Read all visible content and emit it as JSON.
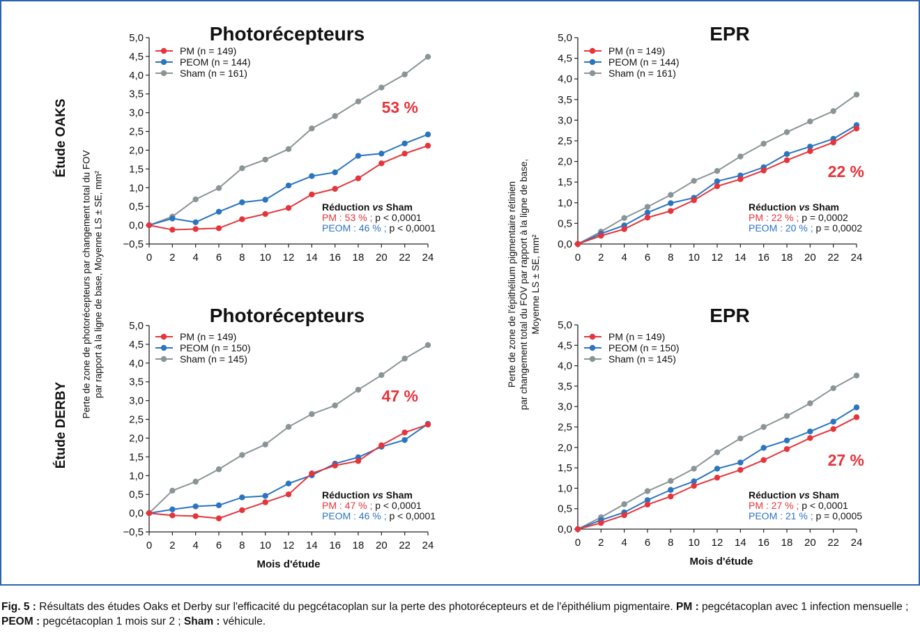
{
  "row_labels": [
    "Étude OAKS",
    "Étude DERBY"
  ],
  "shared_ylabels": {
    "left": [
      "Perte de zone de photorécepteurs par changement total du FOV",
      "par rapport à la ligne de base, Moyenne LS ± SE, mm²"
    ],
    "right": [
      "Perte de zone de l'épithélium pigmentaire rétinien",
      "par changement total du FOV par rapport à la ligne de base,",
      "Moyenne LS ± SE, mm²"
    ]
  },
  "colors": {
    "PM": "#e5343a",
    "PEOM": "#2a74c0",
    "Sham": "#8a9496",
    "frame": "#2a64b0"
  },
  "chart_data": [
    {
      "type": "line",
      "title": "Photorécepteurs",
      "study": "OAKS",
      "xlabel": "",
      "x": [
        0,
        2,
        4,
        6,
        8,
        10,
        12,
        14,
        16,
        18,
        20,
        22,
        24
      ],
      "xticks": [
        "0",
        "2",
        "4",
        "6",
        "8",
        "10",
        "12",
        "14",
        "16",
        "18",
        "20",
        "22",
        "24"
      ],
      "ylim": [
        -0.5,
        5.0
      ],
      "yticks": [
        "−0,5",
        "0,0",
        "0,5",
        "1,0",
        "1,5",
        "2,0",
        "2,5",
        "3,0",
        "3,5",
        "4,0",
        "4,5",
        "5,0"
      ],
      "series": [
        {
          "name": "PM (n = 149)",
          "key": "PM",
          "values": [
            0,
            -0.12,
            -0.1,
            -0.08,
            0.16,
            0.3,
            0.46,
            0.82,
            0.97,
            1.25,
            1.65,
            1.91,
            2.12
          ]
        },
        {
          "name": "PEOM (n = 144)",
          "key": "PEOM",
          "values": [
            0,
            0.18,
            0.08,
            0.36,
            0.61,
            0.68,
            1.06,
            1.31,
            1.41,
            1.85,
            1.91,
            2.18,
            2.42
          ]
        },
        {
          "name": "Sham (n = 161)",
          "key": "Sham",
          "values": [
            0,
            0.23,
            0.69,
            0.99,
            1.52,
            1.75,
            2.03,
            2.58,
            2.91,
            3.3,
            3.67,
            4.02,
            4.49
          ]
        }
      ],
      "highlight": "53 %",
      "stats_title": [
        "Réduction ",
        "vs",
        " Sham"
      ],
      "stats": [
        {
          "key": "PM",
          "label": "PM : 53 % ;",
          "p": " p < 0,0001"
        },
        {
          "key": "PEOM",
          "label": "PEOM : 46 % ;",
          "p": " p < 0,0001"
        }
      ]
    },
    {
      "type": "line",
      "title": "EPR",
      "study": "OAKS",
      "xlabel": "",
      "x": [
        0,
        2,
        4,
        6,
        8,
        10,
        12,
        14,
        16,
        18,
        20,
        22,
        24
      ],
      "xticks": [
        "0",
        "2",
        "4",
        "6",
        "8",
        "10",
        "12",
        "14",
        "16",
        "18",
        "20",
        "22",
        "24"
      ],
      "ylim": [
        0.0,
        5.0
      ],
      "yticks": [
        "0,0",
        "0,5",
        "1,0",
        "1,5",
        "2,0",
        "2,5",
        "3,0",
        "3,5",
        "4,0",
        "4,5",
        "5,0"
      ],
      "series": [
        {
          "name": "PM (n = 149)",
          "key": "PM",
          "values": [
            0,
            0.2,
            0.36,
            0.64,
            0.8,
            1.06,
            1.4,
            1.57,
            1.78,
            2.03,
            2.25,
            2.46,
            2.8
          ]
        },
        {
          "name": "PEOM (n = 144)",
          "key": "PEOM",
          "values": [
            0,
            0.25,
            0.45,
            0.76,
            0.99,
            1.12,
            1.52,
            1.66,
            1.86,
            2.18,
            2.36,
            2.55,
            2.88
          ]
        },
        {
          "name": "Sham (n = 161)",
          "key": "Sham",
          "values": [
            0,
            0.3,
            0.63,
            0.9,
            1.19,
            1.53,
            1.77,
            2.12,
            2.43,
            2.71,
            2.97,
            3.22,
            3.62
          ]
        }
      ],
      "highlight": "22 %",
      "stats_title": [
        "Réduction ",
        "vs",
        " Sham"
      ],
      "stats": [
        {
          "key": "PM",
          "label": "PM : 22 % ;",
          "p": " p = 0,0002"
        },
        {
          "key": "PEOM",
          "label": "PEOM : 20 % ;",
          "p": " p = 0,0002"
        }
      ]
    },
    {
      "type": "line",
      "title": "Photorécepteurs",
      "study": "DERBY",
      "xlabel": "Mois d'étude",
      "x": [
        0,
        2,
        4,
        6,
        8,
        10,
        12,
        14,
        16,
        18,
        20,
        22,
        24
      ],
      "xticks": [
        "0",
        "2",
        "4",
        "6",
        "8",
        "10",
        "12",
        "14",
        "16",
        "18",
        "20",
        "22",
        "24"
      ],
      "ylim": [
        -0.5,
        5.0
      ],
      "yticks": [
        "−0,5",
        "0,0",
        "0,5",
        "1,0",
        "1,5",
        "2,0",
        "2,5",
        "3,0",
        "3,5",
        "4,0",
        "4,5",
        "5,0"
      ],
      "series": [
        {
          "name": "PM (n = 149)",
          "key": "PM",
          "values": [
            0,
            -0.06,
            -0.08,
            -0.14,
            0.08,
            0.29,
            0.5,
            1.06,
            1.27,
            1.39,
            1.81,
            2.15,
            2.36
          ]
        },
        {
          "name": "PEOM (n = 150)",
          "key": "PEOM",
          "values": [
            0,
            0.1,
            0.18,
            0.21,
            0.42,
            0.46,
            0.79,
            1.01,
            1.32,
            1.49,
            1.77,
            1.95,
            2.38
          ]
        },
        {
          "name": "Sham (n = 145)",
          "key": "Sham",
          "values": [
            0,
            0.6,
            0.84,
            1.17,
            1.55,
            1.83,
            2.3,
            2.64,
            2.87,
            3.29,
            3.68,
            4.12,
            4.48
          ]
        }
      ],
      "highlight": "47 %",
      "stats_title": [
        "Réduction ",
        "vs",
        " Sham"
      ],
      "stats": [
        {
          "key": "PM",
          "label": "PM : 47 % ;",
          "p": " p < 0,0001"
        },
        {
          "key": "PEOM",
          "label": "PEOM : 46 % ;",
          "p": " p < 0,0001"
        }
      ]
    },
    {
      "type": "line",
      "title": "EPR",
      "study": "DERBY",
      "xlabel": "Mois d'étude",
      "x": [
        0,
        2,
        4,
        6,
        8,
        10,
        12,
        14,
        16,
        18,
        20,
        22,
        24
      ],
      "xticks": [
        "0",
        "2",
        "4",
        "6",
        "8",
        "10",
        "12",
        "14",
        "16",
        "18",
        "20",
        "22",
        "24"
      ],
      "ylim": [
        0.0,
        5.0
      ],
      "yticks": [
        "0,0",
        "0,5",
        "1,0",
        "1,5",
        "2,0",
        "2,5",
        "3,0",
        "3,5",
        "4,0",
        "4,5",
        "5,0"
      ],
      "series": [
        {
          "name": "PM (n = 149)",
          "key": "PM",
          "values": [
            0,
            0.15,
            0.34,
            0.6,
            0.8,
            1.06,
            1.26,
            1.45,
            1.69,
            1.96,
            2.23,
            2.45,
            2.74
          ]
        },
        {
          "name": "PEOM (n = 150)",
          "key": "PEOM",
          "values": [
            0,
            0.22,
            0.41,
            0.71,
            0.96,
            1.17,
            1.48,
            1.63,
            1.99,
            2.17,
            2.39,
            2.63,
            2.98
          ]
        },
        {
          "name": "Sham (n = 145)",
          "key": "Sham",
          "values": [
            0,
            0.29,
            0.61,
            0.93,
            1.18,
            1.48,
            1.88,
            2.22,
            2.5,
            2.77,
            3.08,
            3.45,
            3.76
          ]
        }
      ],
      "highlight": "27 %",
      "stats_title": [
        "Réduction ",
        "vs",
        " Sham"
      ],
      "stats": [
        {
          "key": "PM",
          "label": "PM : 27 % ;",
          "p": " p < 0,0001"
        },
        {
          "key": "PEOM",
          "label": "PEOM : 21 % ;",
          "p": " p = 0,0005"
        }
      ]
    }
  ],
  "caption": [
    {
      "bold": true,
      "text": "Fig. 5 :"
    },
    {
      "bold": false,
      "text": " Résultats des études Oaks et Derby sur l'efficacité du pegcétacoplan sur la perte des photorécepteurs et de l'épithélium pigmentaire. "
    },
    {
      "bold": true,
      "text": "PM :"
    },
    {
      "bold": false,
      "text": " pegcétacoplan avec 1 infection mensuelle ; "
    },
    {
      "bold": true,
      "text": "PEOM :"
    },
    {
      "bold": false,
      "text": " pegcétacoplan 1 mois sur 2 ; "
    },
    {
      "bold": true,
      "text": "Sham :"
    },
    {
      "bold": false,
      "text": " véhicule."
    }
  ]
}
